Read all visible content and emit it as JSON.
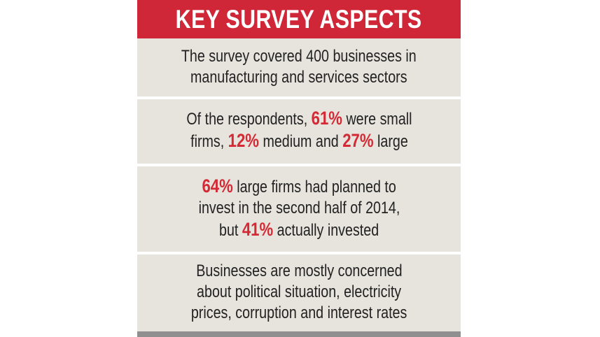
{
  "title": "KEY SURVEY ASPECTS",
  "items": [
    {
      "lines": [
        "The survey covered 400 businesses in",
        "manufacturing and services sectors"
      ]
    },
    {
      "line1": {
        "pre": "Of the respondents, ",
        "hl": "61%",
        "post": " were small"
      },
      "line2": {
        "pre": "firms, ",
        "hl1": "12%",
        "mid": " medium and ",
        "hl2": "27%",
        "post": " large"
      }
    },
    {
      "line1": {
        "hl": "64%",
        "post": " large firms had planned to"
      },
      "line2": "invest in the second half of 2014,",
      "line3": {
        "pre": "but ",
        "hl": "41%",
        "post": " actually invested"
      }
    },
    {
      "lines": [
        "Businesses are mostly concerned",
        "about political situation, electricity",
        "prices, corruption and interest rates"
      ]
    }
  ],
  "colors": {
    "header_bg": "#cf2738",
    "panel_bg": "#e6e4dd",
    "highlight": "#d42a36"
  }
}
